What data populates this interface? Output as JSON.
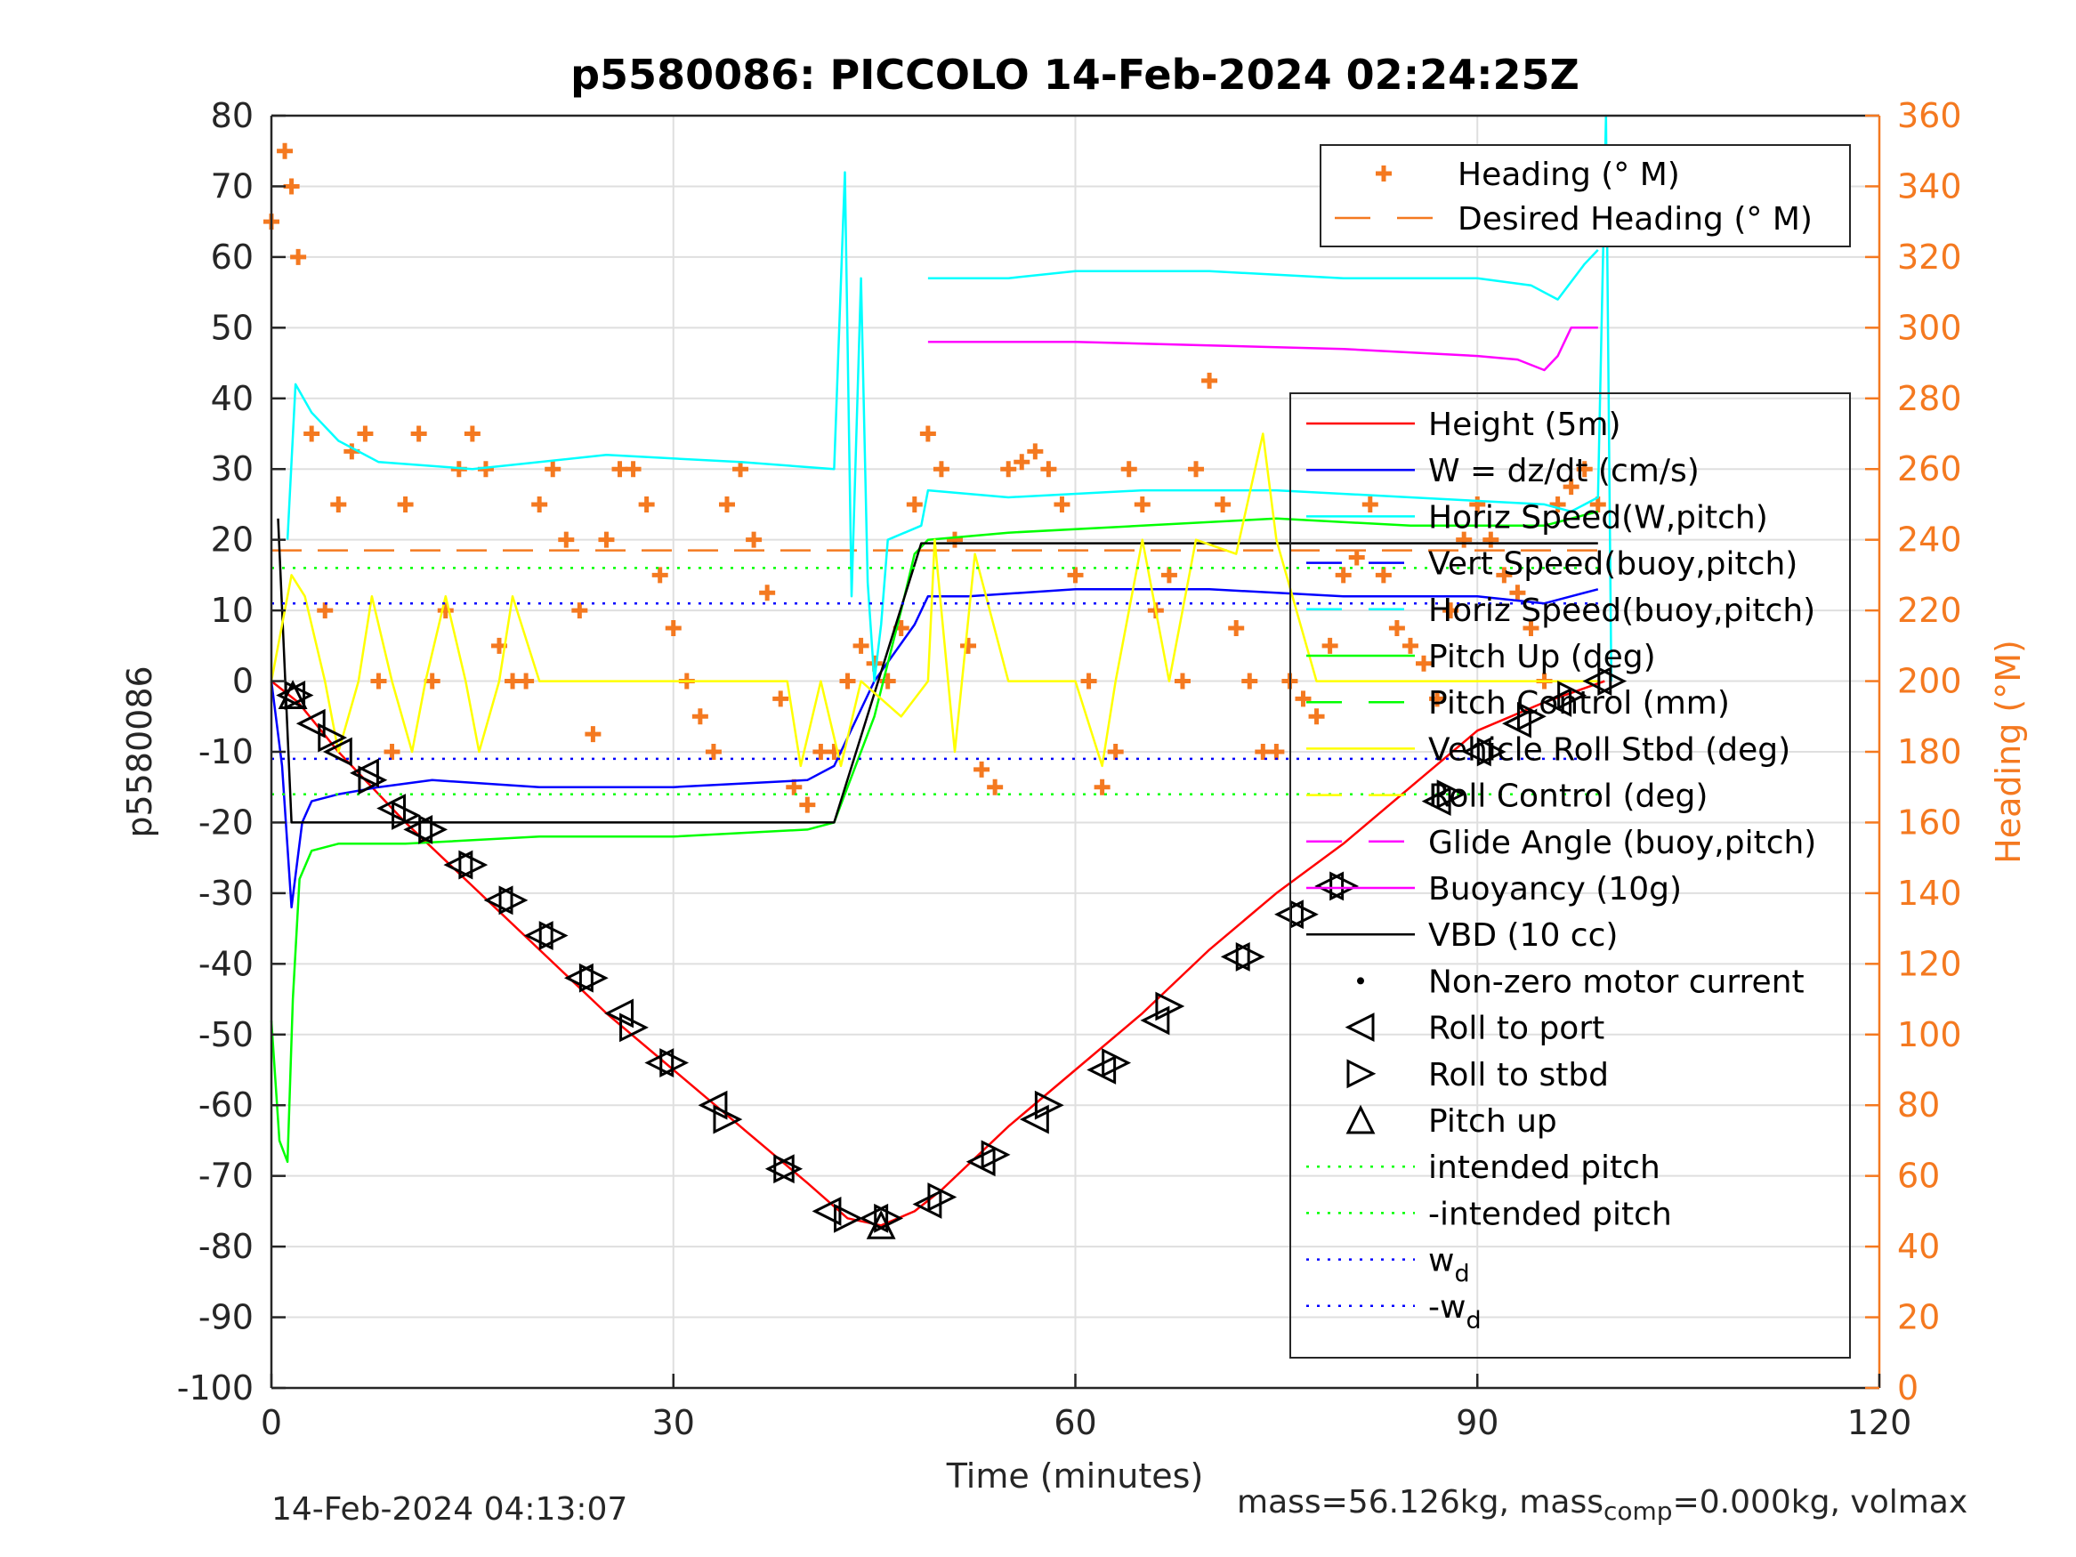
{
  "footer": {
    "timestamp": "14-Feb-2024 04:13:07",
    "mass_text": "mass=56.126kg, mass",
    "mass_sub": "comp",
    "mass_text2": "=0.000kg, volmax"
  },
  "chart_data": {
    "type": "line",
    "title": "p5580086: PICCOLO 14-Feb-2024 02:24:25Z",
    "xlabel": "Time (minutes)",
    "ylabel_left": "p5580086",
    "ylabel_right": "Heading (°M)",
    "xlim": [
      0,
      120
    ],
    "ylim_left": [
      -100,
      80
    ],
    "ylim_right": [
      0,
      360
    ],
    "x_ticks": [
      0,
      30,
      60,
      90,
      120
    ],
    "y_ticks_left": [
      -100,
      -90,
      -80,
      -70,
      -60,
      -50,
      -40,
      -30,
      -20,
      -10,
      0,
      10,
      20,
      30,
      40,
      50,
      60,
      70,
      80
    ],
    "y_ticks_right": [
      0,
      20,
      40,
      60,
      80,
      100,
      120,
      140,
      160,
      180,
      200,
      220,
      240,
      260,
      280,
      300,
      320,
      340,
      360
    ],
    "grid": true,
    "colors": {
      "axis": "#262626",
      "right_axis": "#f47920",
      "grid": "#dfdfdf"
    },
    "legend_heading": {
      "placement": "top-right",
      "entries": [
        {
          "label": "Heading (° M)",
          "color": "#f47920",
          "style": "plus"
        },
        {
          "label": "Desired Heading (° M)",
          "color": "#f47920",
          "style": "dashed"
        }
      ]
    },
    "legend_main": {
      "placement": "right",
      "entries": [
        {
          "label": "Height (5m)",
          "color": "#ff0000",
          "style": "solid"
        },
        {
          "label": "W = dz/dt (cm/s)",
          "color": "#0000ff",
          "style": "solid"
        },
        {
          "label": "Horiz Speed(W,pitch)",
          "color": "#00ffff",
          "style": "solid"
        },
        {
          "label": "Vert Speed(buoy,pitch)",
          "color": "#0000ff",
          "style": "dashed"
        },
        {
          "label": "Horiz Speed(buoy,pitch)",
          "color": "#00ffff",
          "style": "dashed"
        },
        {
          "label": "Pitch Up (deg)",
          "color": "#00ff00",
          "style": "solid"
        },
        {
          "label": "Pitch Control (mm)",
          "color": "#00ff00",
          "style": "dashed"
        },
        {
          "label": "Vehicle Roll Stbd (deg)",
          "color": "#ffff00",
          "style": "solid"
        },
        {
          "label": "Roll Control (deg)",
          "color": "#ffff00",
          "style": "dashed"
        },
        {
          "label": "Glide Angle (buoy,pitch)",
          "color": "#ff00ff",
          "style": "dashed"
        },
        {
          "label": "Buoyancy (10g)",
          "color": "#ff00ff",
          "style": "solid"
        },
        {
          "label": "VBD (10 cc)",
          "color": "#000000",
          "style": "solid"
        },
        {
          "label": "Non-zero motor current",
          "color": "#000000",
          "style": "dot"
        },
        {
          "label": "Roll to port",
          "color": "#000000",
          "style": "tri-left"
        },
        {
          "label": "Roll to stbd",
          "color": "#000000",
          "style": "tri-right"
        },
        {
          "label": "Pitch up",
          "color": "#000000",
          "style": "tri-up"
        },
        {
          "label": "intended pitch",
          "color": "#00ff00",
          "style": "dotted"
        },
        {
          "label": "-intended pitch",
          "color": "#00ff00",
          "style": "dotted"
        },
        {
          "label": "w",
          "sub": "d",
          "color": "#0000ff",
          "style": "dotted"
        },
        {
          "label": "-w",
          "sub": "d",
          "color": "#0000ff",
          "style": "dotted"
        }
      ]
    },
    "series": [
      {
        "name": "Height (5m)",
        "color": "#ff0000",
        "axis": "left",
        "style": "solid",
        "x": [
          0,
          2,
          5,
          10,
          15,
          20,
          25,
          30,
          35,
          40,
          43,
          45.5,
          48,
          50,
          55,
          60,
          65,
          70,
          75,
          80,
          85,
          90,
          95,
          99.5
        ],
        "y": [
          0,
          -3,
          -10,
          -20,
          -29,
          -38,
          -47,
          -55,
          -63,
          -71,
          -76,
          -77,
          -75,
          -72,
          -63,
          -55,
          -47,
          -38,
          -30,
          -23,
          -15,
          -7,
          -3,
          0
        ]
      },
      {
        "name": "W = dz/dt (cm/s)",
        "color": "#0000ff",
        "axis": "left",
        "style": "solid",
        "x": [
          0,
          0.8,
          1.5,
          2.3,
          3,
          5,
          8,
          12,
          20,
          30,
          40,
          42,
          45,
          48,
          49,
          52,
          60,
          70,
          80,
          90,
          95,
          97,
          99
        ],
        "y": [
          0,
          -12,
          -32,
          -20,
          -17,
          -16,
          -15,
          -14,
          -15,
          -15,
          -14,
          -12,
          0,
          8,
          12,
          12,
          13,
          13,
          12,
          12,
          11,
          12,
          13
        ]
      },
      {
        "name": "Horiz Speed(W,pitch)",
        "color": "#00ffff",
        "axis": "left",
        "style": "solid",
        "x": [
          1.2,
          1.8,
          3,
          5,
          8,
          15,
          25,
          35,
          42,
          42.8,
          43.3,
          44,
          44.5,
          45,
          45.5,
          46,
          48.5,
          49,
          55,
          65,
          75,
          85,
          95,
          97,
          99,
          99.6,
          100
        ],
        "y": [
          20,
          42,
          38,
          34,
          31,
          30,
          32,
          31,
          30,
          72,
          12,
          57,
          14,
          0,
          8,
          20,
          22,
          27,
          26,
          27,
          27,
          26,
          25,
          24,
          26,
          80,
          0
        ]
      },
      {
        "name": "Horiz Speed(buoy,pitch)",
        "color": "#00ffff",
        "axis": "left",
        "style": "solid",
        "x": [
          49,
          55,
          60,
          70,
          80,
          90,
          94,
          96,
          98,
          99
        ],
        "y": [
          57,
          57,
          58,
          58,
          57,
          57,
          56,
          54,
          59,
          61
        ]
      },
      {
        "name": "Buoyancy (10g)",
        "color": "#ff00ff",
        "axis": "left",
        "style": "solid",
        "x": [
          49,
          60,
          70,
          80,
          90,
          93,
          95,
          96,
          97,
          99
        ],
        "y": [
          48,
          48,
          47.5,
          47,
          46,
          45.5,
          44,
          46,
          50,
          50
        ]
      },
      {
        "name": "Pitch Up (deg)",
        "color": "#00ff00",
        "axis": "left",
        "style": "solid",
        "x": [
          0,
          0.6,
          1.2,
          1.6,
          2.1,
          3,
          5,
          10,
          20,
          30,
          40,
          42,
          45,
          47,
          48,
          49,
          55,
          65,
          75,
          85,
          95,
          99
        ],
        "y": [
          -48,
          -65,
          -68,
          -45,
          -28,
          -24,
          -23,
          -23,
          -22,
          -22,
          -21,
          -20,
          -5,
          10,
          18,
          20,
          21,
          22,
          23,
          22,
          22,
          24
        ]
      },
      {
        "name": "VBD (10 cc)",
        "color": "#000000",
        "axis": "left",
        "style": "solid",
        "x": [
          0.5,
          1.5,
          42,
          48.5,
          99
        ],
        "y": [
          23,
          -20,
          -20,
          19.5,
          19.5
        ]
      },
      {
        "name": "Vehicle Roll Stbd (deg)",
        "color": "#ffff00",
        "axis": "left",
        "style": "solid",
        "x": [
          0,
          1.5,
          2.5,
          4,
          5,
          6.5,
          7.5,
          9,
          10.5,
          11.5,
          13,
          14.5,
          15.5,
          17,
          18,
          20,
          25,
          30,
          35,
          38.5,
          39.5,
          41,
          42.5,
          44,
          47,
          49,
          49.5,
          51,
          52.5,
          55,
          60,
          62,
          63,
          65,
          67,
          69,
          72,
          74,
          75,
          78,
          80,
          85,
          90,
          95,
          99
        ],
        "y": [
          0,
          15,
          12,
          0,
          -10,
          0,
          12,
          0,
          -10,
          0,
          12,
          0,
          -10,
          0,
          12,
          0,
          0,
          0,
          0,
          0,
          -12,
          0,
          -12,
          0,
          -5,
          0,
          20,
          -10,
          18,
          0,
          0,
          -12,
          0,
          20,
          0,
          20,
          18,
          35,
          20,
          0,
          0,
          0,
          0,
          0,
          0
        ]
      },
      {
        "name": "Heading (° M)",
        "color": "#f47920",
        "axis": "right",
        "style": "plus",
        "x": [
          0,
          1,
          1.5,
          2,
          3,
          4,
          5,
          6,
          7,
          8,
          9,
          10,
          11,
          12,
          13,
          14,
          15,
          16,
          17,
          18,
          19,
          20,
          21,
          22,
          23,
          24,
          25,
          26,
          27,
          28,
          29,
          30,
          31,
          32,
          33,
          34,
          35,
          36,
          37,
          38,
          39,
          40,
          41,
          42,
          43,
          44,
          45,
          46,
          47,
          48,
          49,
          50,
          51,
          52,
          53,
          54,
          55,
          56,
          57,
          58,
          59,
          60,
          61,
          62,
          63,
          64,
          65,
          66,
          67,
          68,
          69,
          70,
          71,
          72,
          73,
          74,
          75,
          76,
          77,
          78,
          79,
          80,
          81,
          82,
          83,
          84,
          85,
          86,
          87,
          88,
          89,
          90,
          91,
          92,
          93,
          94,
          95,
          96,
          97,
          98,
          99
        ],
        "y": [
          330,
          350,
          340,
          320,
          270,
          220,
          250,
          265,
          270,
          200,
          180,
          250,
          270,
          200,
          220,
          260,
          270,
          260,
          210,
          200,
          200,
          250,
          260,
          240,
          220,
          185,
          240,
          260,
          260,
          250,
          230,
          215,
          200,
          190,
          180,
          250,
          260,
          240,
          225,
          195,
          170,
          165,
          180,
          180,
          200,
          210,
          205,
          200,
          215,
          250,
          270,
          260,
          240,
          210,
          175,
          170,
          260,
          262,
          265,
          260,
          250,
          230,
          200,
          170,
          180,
          260,
          250,
          220,
          230,
          200,
          260,
          285,
          250,
          215,
          200,
          180,
          180,
          200,
          195,
          190,
          210,
          230,
          235,
          250,
          230,
          215,
          210,
          205,
          195,
          220,
          240,
          250,
          240,
          230,
          225,
          215,
          200,
          250,
          255,
          260,
          250
        ]
      },
      {
        "name": "Desired Heading (° M)",
        "color": "#f47920",
        "axis": "right",
        "style": "dashed",
        "x": [
          0,
          99
        ],
        "y": [
          237,
          237
        ]
      },
      {
        "name": "intended pitch",
        "color": "#00ff00",
        "axis": "left",
        "style": "dotted",
        "x": [
          0,
          99
        ],
        "y": [
          16,
          16
        ]
      },
      {
        "name": "-intended pitch",
        "color": "#00ff00",
        "axis": "left",
        "style": "dotted",
        "x": [
          0,
          99
        ],
        "y": [
          -16,
          -16
        ]
      },
      {
        "name": "wd",
        "color": "#0000ff",
        "axis": "left",
        "style": "dotted",
        "x": [
          0,
          99
        ],
        "y": [
          11,
          11
        ]
      },
      {
        "name": "-wd",
        "color": "#0000ff",
        "axis": "left",
        "style": "dotted",
        "x": [
          0,
          99
        ],
        "y": [
          -11,
          -11
        ]
      }
    ],
    "markers": {
      "roll_to_port": {
        "x": [
          1.5,
          3,
          5,
          7,
          9,
          11,
          14,
          17,
          20,
          23,
          26,
          29,
          33,
          38,
          41.5,
          45,
          49,
          53,
          57,
          62,
          66,
          72,
          76,
          79,
          87,
          90,
          93,
          96,
          99
        ],
        "y": [
          -2,
          -6,
          -10,
          -13,
          -18,
          -21,
          -26,
          -31,
          -36,
          -42,
          -47,
          -54,
          -60,
          -69,
          -75,
          -76,
          -74,
          -68,
          -62,
          -55,
          -48,
          -39,
          -33,
          -29,
          -17,
          -10,
          -6,
          -3,
          0
        ]
      },
      "roll_to_stbd": {
        "x": [
          2,
          4.5,
          7.5,
          10,
          12,
          15,
          18,
          21,
          24,
          27,
          30,
          34,
          38.5,
          43,
          46,
          50,
          54,
          58,
          63,
          67,
          73,
          77,
          80,
          88,
          91,
          94,
          97,
          100
        ],
        "y": [
          -2,
          -8,
          -14,
          -19,
          -21,
          -26,
          -31,
          -36,
          -42,
          -49,
          -54,
          -62,
          -69,
          -76,
          -76,
          -73,
          -67,
          -60,
          -54,
          -46,
          -39,
          -33,
          -29,
          -16,
          -10,
          -5,
          -2,
          0
        ]
      },
      "pitch_up": {
        "x": [
          1.6,
          45.5
        ],
        "y": [
          -2,
          -77
        ]
      }
    }
  }
}
